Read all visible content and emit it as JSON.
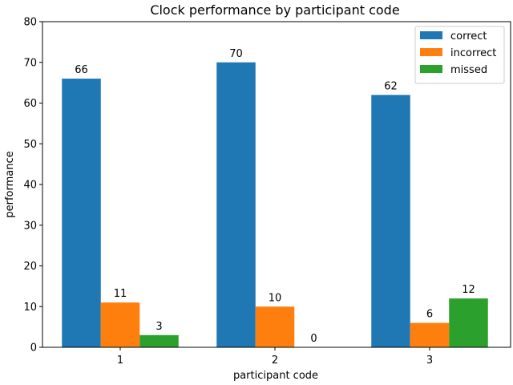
{
  "chart_data": {
    "type": "bar",
    "title": "Clock performance by participant code",
    "xlabel": "participant code",
    "ylabel": "performance",
    "categories": [
      "1",
      "2",
      "3"
    ],
    "series": [
      {
        "name": "correct",
        "values": [
          66,
          70,
          62
        ],
        "color": "#1f77b4"
      },
      {
        "name": "incorrect",
        "values": [
          11,
          10,
          6
        ],
        "color": "#ff7f0e"
      },
      {
        "name": "missed",
        "values": [
          3,
          0,
          12
        ],
        "color": "#2ca02c"
      }
    ],
    "ylim": [
      0,
      80
    ],
    "yticks": [
      0,
      10,
      20,
      30,
      40,
      50,
      60,
      70,
      80
    ],
    "grid": false,
    "legend_position": "top-right",
    "data_labels": true
  }
}
